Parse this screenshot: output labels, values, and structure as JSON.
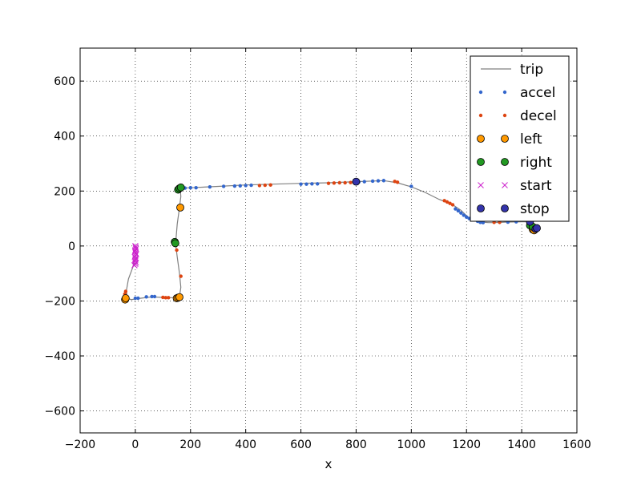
{
  "chart_data": {
    "type": "scatter",
    "title": "",
    "xlabel": "x",
    "ylabel": "",
    "xlim": [
      -200,
      1600
    ],
    "ylim": [
      -680,
      720
    ],
    "xticks": [
      -200,
      0,
      200,
      400,
      600,
      800,
      1000,
      1200,
      1400,
      1600
    ],
    "yticks": [
      -600,
      -400,
      -200,
      0,
      200,
      400,
      600
    ],
    "xtick_labels": [
      "−200",
      "0",
      "200",
      "400",
      "600",
      "800",
      "1000",
      "1200",
      "1400",
      "1600"
    ],
    "ytick_labels": [
      "−600",
      "−400",
      "−200",
      "0",
      "200",
      "400",
      "600"
    ],
    "grid": true,
    "legend_position": "top-right",
    "series": [
      {
        "name": "trip",
        "kind": "line",
        "color": "#808080",
        "x": [
          0,
          -10,
          -25,
          -32,
          -30,
          -15,
          20,
          60,
          100,
          130,
          150,
          160,
          165,
          160,
          152,
          147,
          147,
          152,
          160,
          165,
          163,
          160,
          200,
          300,
          400,
          500,
          600,
          700,
          800,
          900,
          950,
          1000,
          1050,
          1100,
          1150,
          1180,
          1200,
          1220,
          1250,
          1280,
          1300,
          1350,
          1400,
          1430,
          1445,
          1450,
          1455
        ],
        "y": [
          -45,
          -80,
          -120,
          -160,
          -190,
          -195,
          -190,
          -185,
          -187,
          -188,
          -188,
          -185,
          -150,
          -100,
          -40,
          0,
          20,
          80,
          140,
          180,
          205,
          210,
          212,
          217,
          222,
          225,
          228,
          230,
          234,
          238,
          230,
          215,
          195,
          170,
          150,
          130,
          110,
          95,
          87,
          85,
          85,
          87,
          88,
          88,
          80,
          70,
          65
        ]
      },
      {
        "name": "accel",
        "kind": "points",
        "color": "#3366cc",
        "x": [
          0,
          10,
          40,
          60,
          70,
          180,
          200,
          220,
          270,
          320,
          360,
          380,
          400,
          420,
          600,
          620,
          640,
          660,
          810,
          830,
          860,
          880,
          900,
          1000,
          1160,
          1170,
          1180,
          1190,
          1200,
          1210,
          1220,
          1240,
          1250,
          1260,
          1350,
          1380
        ],
        "y": [
          -190,
          -190,
          -185,
          -184,
          -184,
          211,
          212,
          212,
          215,
          217,
          218,
          219,
          220,
          221,
          225,
          225,
          226,
          226,
          233,
          234,
          236,
          237,
          238,
          217,
          135,
          128,
          120,
          112,
          105,
          100,
          95,
          90,
          86,
          85,
          87,
          88
        ]
      },
      {
        "name": "decel",
        "kind": "points",
        "color": "#dd4411",
        "x": [
          -35,
          -38,
          100,
          110,
          120,
          150,
          165,
          450,
          470,
          490,
          700,
          720,
          740,
          760,
          780,
          940,
          950,
          1120,
          1130,
          1140,
          1150,
          1300,
          1320
        ],
        "y": [
          -165,
          -175,
          -187,
          -188,
          -188,
          -15,
          -110,
          220,
          221,
          222,
          228,
          229,
          230,
          230,
          231,
          235,
          232,
          165,
          160,
          155,
          150,
          86,
          86
        ]
      },
      {
        "name": "left",
        "kind": "points",
        "color": "#ff9900",
        "x": [
          -37,
          -35,
          150,
          155,
          160,
          163,
          1440,
          1445
        ],
        "y": [
          -195,
          -190,
          -190,
          -188,
          -186,
          140,
          60,
          57
        ]
      },
      {
        "name": "right",
        "kind": "points",
        "color": "#229922",
        "x": [
          143,
          145,
          155,
          160,
          165,
          1430,
          1440
        ],
        "y": [
          15,
          10,
          205,
          210,
          213,
          75,
          70
        ]
      },
      {
        "name": "start",
        "kind": "points",
        "color": "#cc22cc",
        "marker": "x",
        "x": [
          0,
          1,
          2,
          0,
          -1,
          1,
          3,
          0,
          -2,
          1,
          0,
          -1,
          2,
          0,
          -3
        ],
        "y": [
          0,
          -5,
          -10,
          -15,
          -20,
          -25,
          -30,
          -35,
          -40,
          -45,
          -50,
          -55,
          -60,
          -65,
          -70
        ]
      },
      {
        "name": "stop",
        "kind": "points",
        "color": "#3333aa",
        "x": [
          800,
          1450,
          1455,
          1430
        ],
        "y": [
          234,
          62,
          65,
          88
        ]
      }
    ]
  }
}
